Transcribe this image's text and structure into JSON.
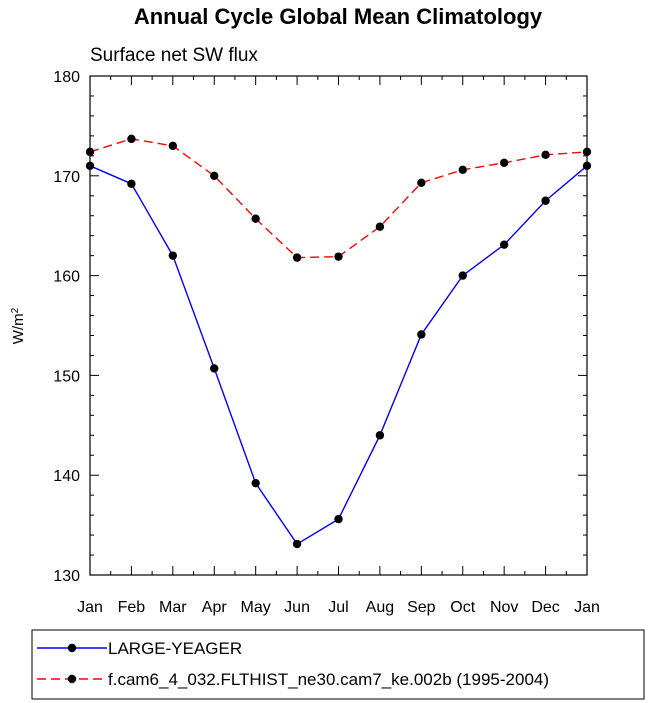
{
  "chart_data": {
    "type": "line",
    "title": "Annual Cycle Global Mean Climatology",
    "subtitle": "Surface net SW flux",
    "ylabel": "W/m",
    "ylabel_sup": "2",
    "xlabel": "",
    "categories": [
      "Jan",
      "Feb",
      "Mar",
      "Apr",
      "May",
      "Jun",
      "Jul",
      "Aug",
      "Sep",
      "Oct",
      "Nov",
      "Dec",
      "Jan"
    ],
    "ylim": [
      130,
      180
    ],
    "yticks": [
      130,
      140,
      150,
      160,
      170,
      180
    ],
    "grid": false,
    "legend_position": "bottom",
    "series": [
      {
        "name": "LARGE-YEAGER",
        "color": "#0000ff",
        "line_style": "solid",
        "marker": "filled-circle",
        "values": [
          171.0,
          169.2,
          162.0,
          150.7,
          139.2,
          133.1,
          135.6,
          144.0,
          154.1,
          160.0,
          163.1,
          167.5,
          171.0
        ]
      },
      {
        "name": "f.cam6_4_032.FLTHIST_ne30.cam7_ke.002b (1995-2004)",
        "color": "#ff0000",
        "line_style": "dashed",
        "marker": "filled-circle",
        "values": [
          172.4,
          173.7,
          173.0,
          170.0,
          165.7,
          161.8,
          161.9,
          164.9,
          169.3,
          170.6,
          171.3,
          172.1,
          172.4
        ]
      }
    ]
  }
}
